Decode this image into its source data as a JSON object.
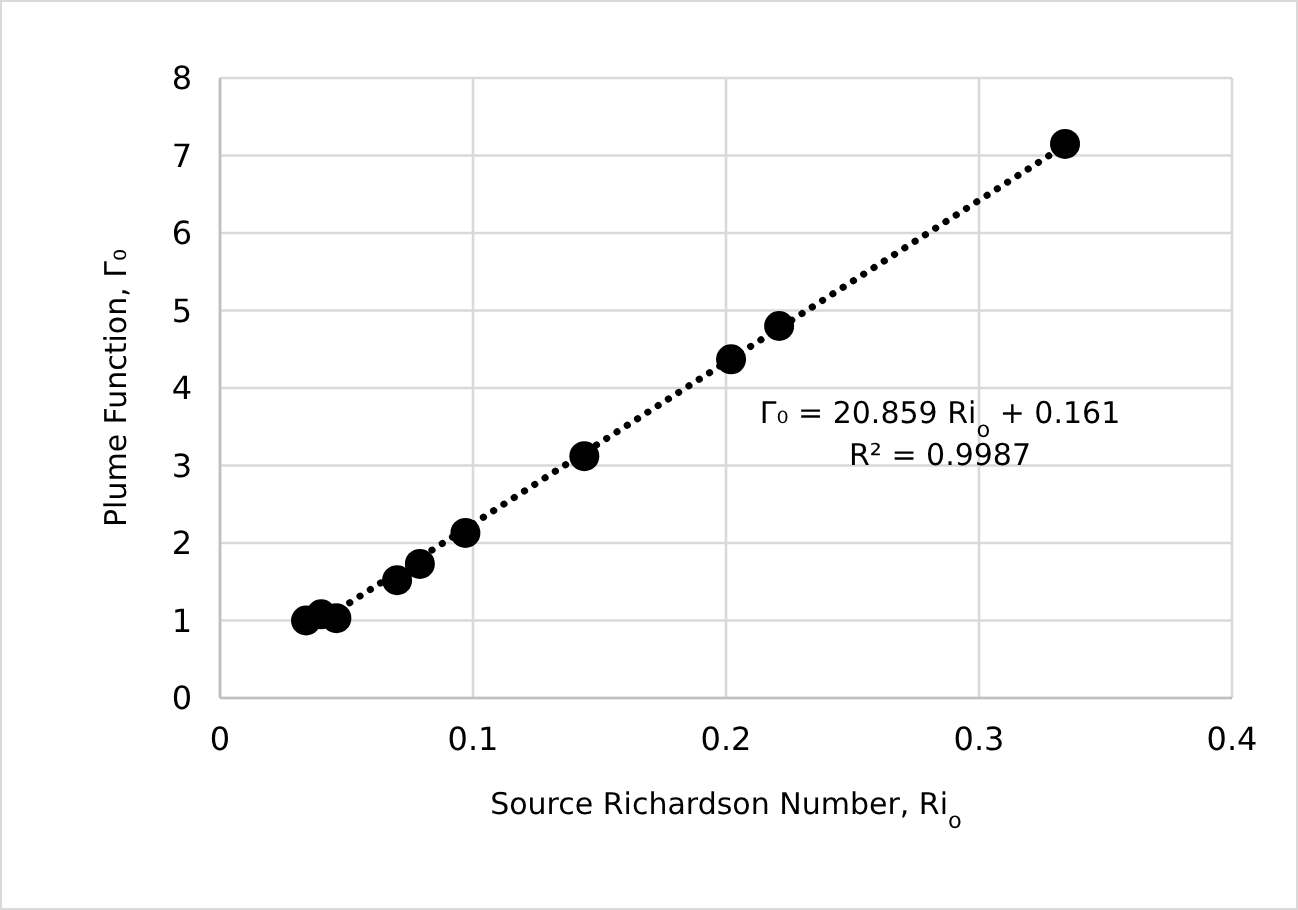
{
  "chart_data": {
    "type": "scatter",
    "xlabel": "Source Richardson Number, Ri$_{o}$",
    "ylabel": "Plume Function, Γ₀",
    "xlim": [
      0,
      0.4
    ],
    "xticks": [
      0,
      0.1,
      0.2,
      0.3,
      0.4
    ],
    "ylim": [
      0,
      8
    ],
    "yticks": [
      0,
      1,
      2,
      3,
      4,
      5,
      6,
      7,
      8
    ],
    "grid": true,
    "series": [
      {
        "color": "#000000",
        "marker": "circle",
        "x": [
          0.034,
          0.04,
          0.046,
          0.07,
          0.079,
          0.097,
          0.144,
          0.202,
          0.221,
          0.334
        ],
        "values": [
          1.0,
          1.08,
          1.03,
          1.52,
          1.73,
          2.13,
          3.12,
          4.37,
          4.8,
          7.15
        ]
      },
      {
        "type": "line",
        "color": "#000000",
        "line_style": "dotted",
        "marker": "none",
        "x": [
          0.035,
          0.334
        ],
        "values": [
          0.89,
          7.13
        ]
      }
    ],
    "annotations": [
      "Γ₀ = 20.859 Ri$_{o}$ + 0.161",
      "R² = 0.9987"
    ]
  }
}
